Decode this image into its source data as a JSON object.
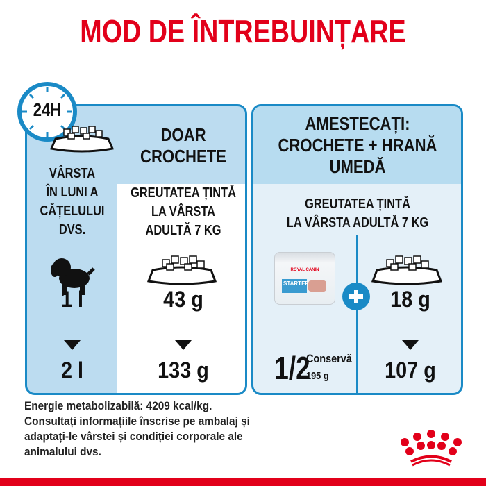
{
  "title": "MOD DE ÎNTREBUINȚARE",
  "left_card": {
    "clock_label": "24H",
    "heading": [
      "DOAR",
      "CROCHETE"
    ],
    "age_label": [
      "VÂRSTA",
      "ÎN LUNI A",
      "CĂȚELULUI",
      "DVS."
    ],
    "target_label": [
      "GREUTATEA ȚINTĂ",
      "LA VÂRSTA",
      "ADULTĂ 7 KG"
    ],
    "age_from": "1 l",
    "age_to": "2 l",
    "dry_from": "43 g",
    "dry_to": "133 g"
  },
  "right_card": {
    "heading": [
      "AMESTECAȚI:",
      "CROCHETE + HRANĂ",
      "UMEDĂ"
    ],
    "target_label": [
      "GREUTATEA ȚINTĂ",
      "LA VÂRSTA ADULTĂ 7 KG"
    ],
    "can_brand": "ROYAL CANIN",
    "can_product": "STARTER",
    "can_fraction": "1/2",
    "can_unit": "Conservă",
    "can_weight": "195 g",
    "dry_from": "18 g",
    "dry_to": "107 g"
  },
  "footer": [
    "Energie metabolizabilă: 4209 kcal/kg.",
    "Consultați informațiile înscrise pe ambalaj și",
    "adaptați-le vârstei și condiției corporale ale",
    "animalului dvs."
  ],
  "colors": {
    "brand_red": "#e2001a",
    "blue": "#1a8ac6",
    "light_blue": "#bcdcf0",
    "pale_blue": "#e4f0f8"
  }
}
